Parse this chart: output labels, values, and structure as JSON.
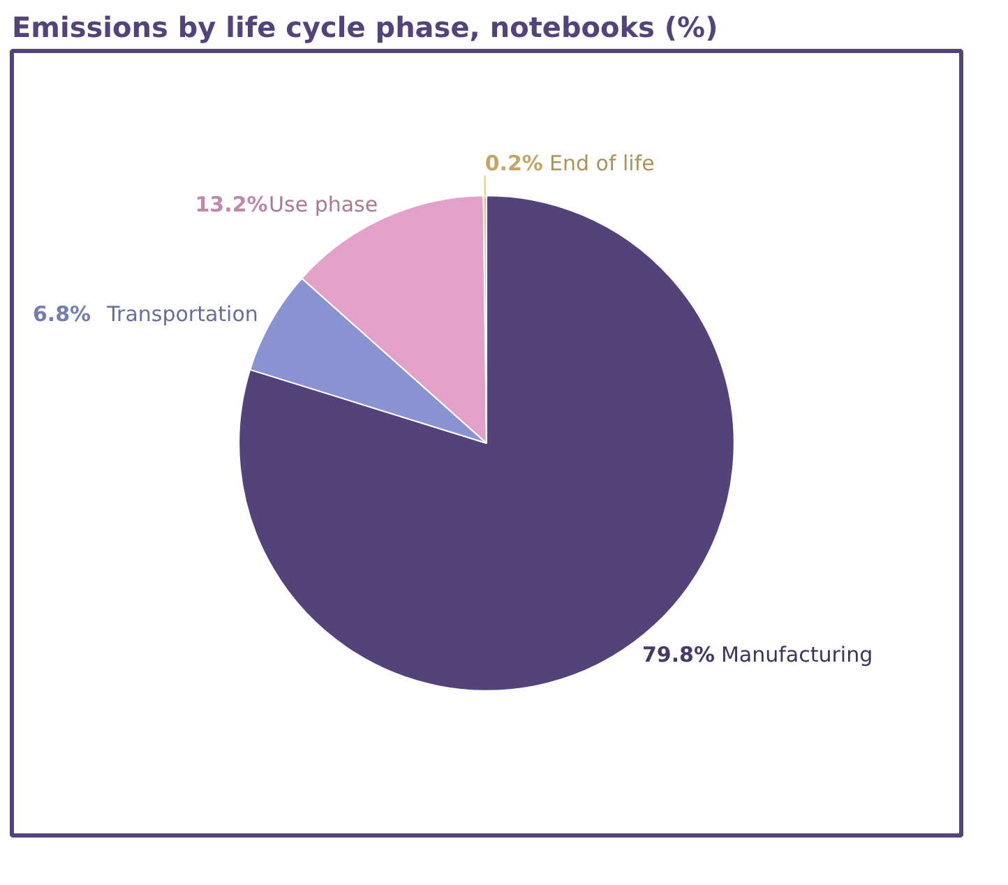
{
  "chart_data": {
    "type": "pie",
    "title": "Emissions by life cycle phase, notebooks (%)",
    "categories": [
      "Manufacturing",
      "Transportation",
      "Use phase",
      "End of life"
    ],
    "values": [
      79.8,
      6.8,
      13.2,
      0.2
    ],
    "colors": [
      "#54427a",
      "#8a93d2",
      "#e3a0c8",
      "#e8c27a"
    ],
    "value_labels": [
      "79.8%",
      "6.8%",
      "13.2%",
      "0.2%"
    ]
  }
}
